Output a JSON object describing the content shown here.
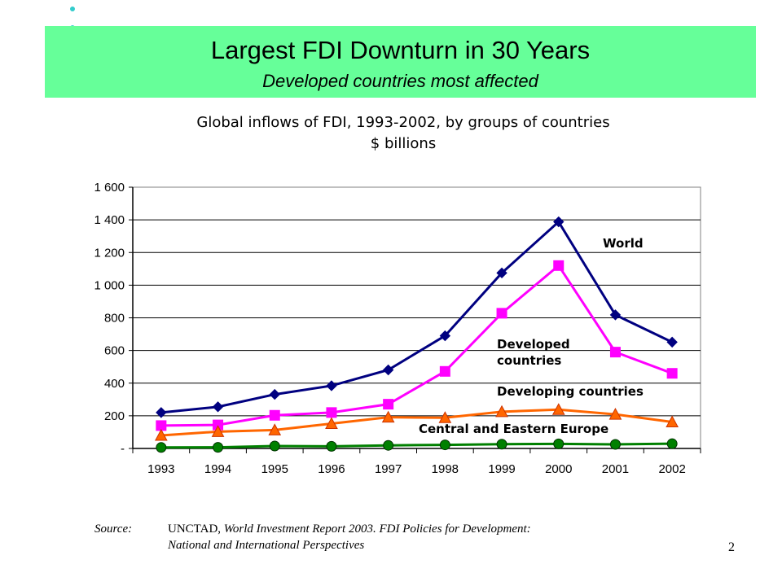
{
  "slide": {
    "title": "Largest FDI Downturn in 30 Years",
    "subtitle": "Developed countries most affected",
    "page_number": "2"
  },
  "source": {
    "label": "Source:",
    "line1_plain": "UNCTAD, ",
    "line1_italic": "World Investment Report 2003.  FDI Policies for Development:",
    "line2_italic": "National and International Perspectives"
  },
  "colors": {
    "banner": "#66ff99",
    "bullet": "#33cccc",
    "world": "#000080",
    "developed": "#ff00ff",
    "developing": "#ff6600",
    "cee": "#008000"
  },
  "chart_data": {
    "type": "line",
    "title": "Global inflows of FDI, 1993-2002, by groups of countries",
    "subtitle": "$ billions",
    "xlabel": "",
    "ylabel": "",
    "x": [
      "1993",
      "1994",
      "1995",
      "1996",
      "1997",
      "1998",
      "1999",
      "2000",
      "2001",
      "2002"
    ],
    "ylim": [
      0,
      1600
    ],
    "yticks": [
      {
        "value": 0,
        "label": "-"
      },
      {
        "value": 200,
        "label": "200"
      },
      {
        "value": 400,
        "label": "400"
      },
      {
        "value": 600,
        "label": "600"
      },
      {
        "value": 800,
        "label": "800"
      },
      {
        "value": 1000,
        "label": "1 000"
      },
      {
        "value": 1200,
        "label": "1 200"
      },
      {
        "value": 1400,
        "label": "1 400"
      },
      {
        "value": 1600,
        "label": "1 600"
      }
    ],
    "grid": true,
    "series": [
      {
        "name": "World",
        "label_lines": [
          "World"
        ],
        "marker": "diamond",
        "color": "#000080",
        "values": [
          220,
          255,
          331,
          384,
          481,
          690,
          1075,
          1388,
          818,
          651
        ]
      },
      {
        "name": "Developed countries",
        "label_lines": [
          "Developed",
          "countries"
        ],
        "marker": "square",
        "color": "#ff00ff",
        "values": [
          140,
          144,
          203,
          220,
          271,
          472,
          828,
          1120,
          590,
          460
        ]
      },
      {
        "name": "Developing countries",
        "label_lines": [
          "Developing countries"
        ],
        "marker": "triangle",
        "color": "#ff6600",
        "values": [
          80,
          103,
          113,
          152,
          191,
          188,
          225,
          238,
          209,
          162
        ]
      },
      {
        "name": "Central and Eastern Europe",
        "label_lines": [
          "Central and Eastern Europe"
        ],
        "marker": "circle",
        "color": "#008000",
        "values": [
          6,
          7,
          15,
          13,
          19,
          22,
          26,
          28,
          25,
          29
        ]
      }
    ]
  }
}
